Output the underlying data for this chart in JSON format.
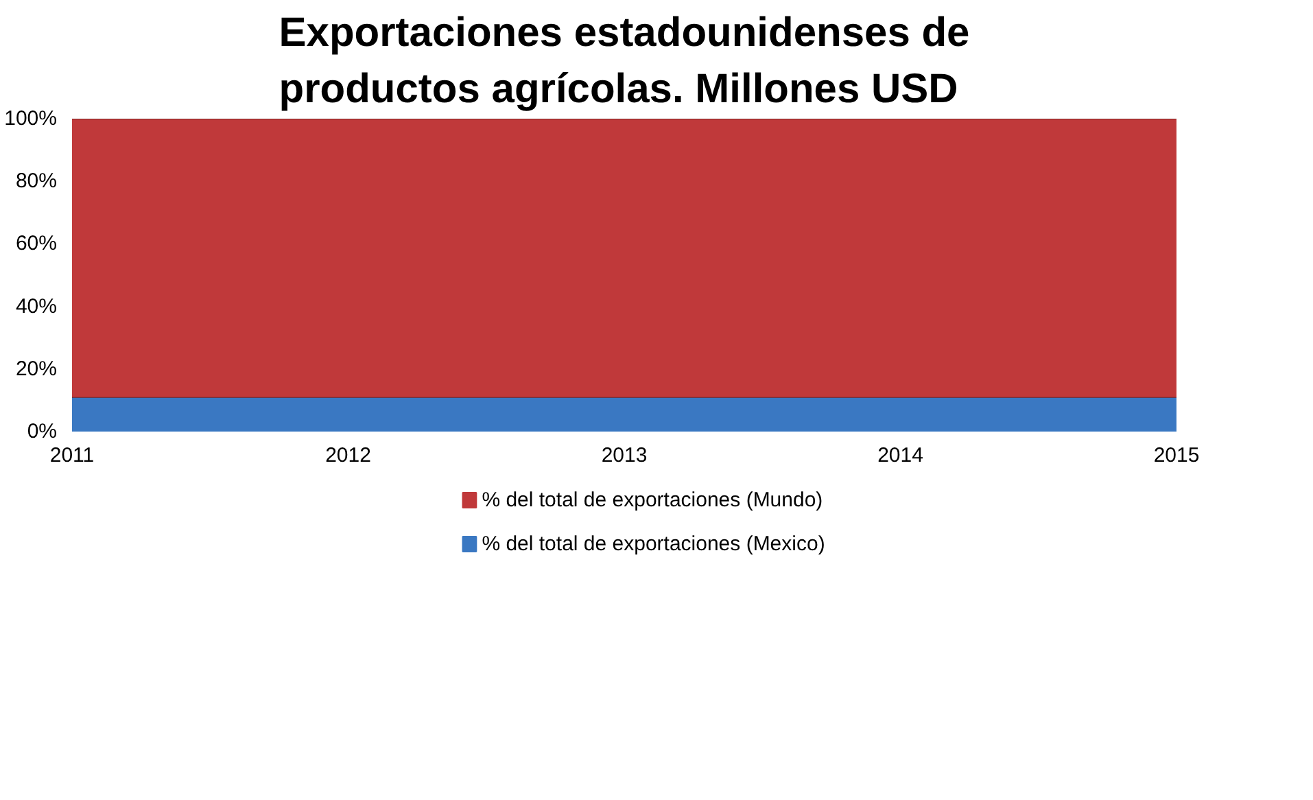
{
  "chart_data": {
    "type": "area",
    "stacked": true,
    "title": "Exportaciones estadounidenses de productos agrícolas. Millones USD",
    "categories": [
      "2011",
      "2012",
      "2013",
      "2014",
      "2015"
    ],
    "series": [
      {
        "name": "% del total de exportaciones (Mexico)",
        "color": "#3a78c2",
        "values": [
          11,
          11,
          11,
          11,
          11
        ]
      },
      {
        "name": "% del total de exportaciones (Mundo)",
        "color": "#c0393a",
        "values": [
          89,
          89,
          89,
          89,
          89
        ]
      }
    ],
    "ylim": [
      0,
      100
    ],
    "yticks": [
      {
        "value": 0,
        "label": "0%"
      },
      {
        "value": 20,
        "label": "20%"
      },
      {
        "value": 40,
        "label": "40%"
      },
      {
        "value": 60,
        "label": "60%"
      },
      {
        "value": 80,
        "label": "80%"
      },
      {
        "value": 100,
        "label": "100%"
      }
    ],
    "legend": "bottom"
  }
}
